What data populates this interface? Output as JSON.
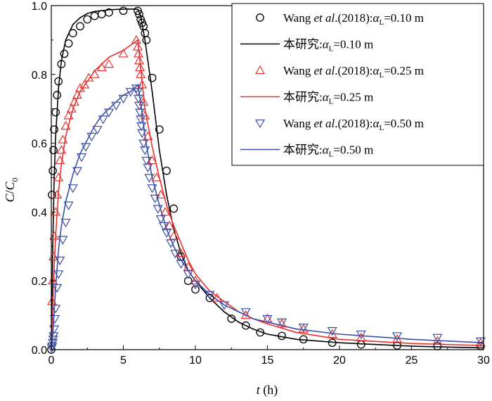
{
  "chart_data": {
    "type": "scatter",
    "xlabel": {
      "var": "t",
      "unit": " (h)"
    },
    "ylabel": {
      "main": "C",
      "slash": "/",
      "sub_main": "C",
      "sub": "0"
    },
    "xlim": [
      0,
      30
    ],
    "ylim": [
      0,
      1.0
    ],
    "xticks": [
      0,
      5,
      10,
      15,
      20,
      25,
      30
    ],
    "yticks": [
      0.0,
      0.2,
      0.4,
      0.6,
      0.8,
      1.0
    ],
    "xtick_labels": [
      "0",
      "5",
      "10",
      "15",
      "20",
      "25",
      "30"
    ],
    "ytick_labels": [
      "0.0",
      "0.2",
      "0.4",
      "0.6",
      "0.8",
      "1.0"
    ],
    "grid": false,
    "legend_position": "top-right",
    "legend": [
      {
        "kind": "marker",
        "marker": "circle",
        "color": "#000000",
        "pre": "Wang ",
        "italic": "et al",
        "mid": ".(2018):",
        "alpha": "α",
        "alpha_sub": "L",
        "value": "=0.10 m"
      },
      {
        "kind": "line",
        "color": "#000000",
        "pre": "本研究:",
        "italic": "",
        "mid": "",
        "alpha": "α",
        "alpha_sub": "L",
        "value": "=0.10 m"
      },
      {
        "kind": "marker",
        "marker": "triangle-up",
        "color": "#e8312f",
        "pre": "Wang ",
        "italic": "et al",
        "mid": ".(2018):",
        "alpha": "α",
        "alpha_sub": "L",
        "value": "=0.25 m"
      },
      {
        "kind": "line",
        "color": "#e8312f",
        "pre": "本研究:",
        "italic": "",
        "mid": "",
        "alpha": "α",
        "alpha_sub": "L",
        "value": "=0.25 m"
      },
      {
        "kind": "marker",
        "marker": "triangle-down",
        "color": "#3b4fa8",
        "pre": "Wang ",
        "italic": "et al",
        "mid": ".(2018):",
        "alpha": "α",
        "alpha_sub": "L",
        "value": "=0.50 m"
      },
      {
        "kind": "line",
        "color": "#3b4fa8",
        "pre": "本研究:",
        "italic": "",
        "mid": "",
        "alpha": "α",
        "alpha_sub": "L",
        "value": "=0.50 m"
      }
    ],
    "series": [
      {
        "name": "Wang et al.(2018):αL=0.10 m",
        "type": "scatter",
        "marker": "circle",
        "color": "#000000",
        "x": [
          0,
          0.05,
          0.1,
          0.15,
          0.2,
          0.3,
          0.4,
          0.5,
          0.7,
          0.9,
          1.2,
          1.5,
          2.0,
          2.5,
          3.0,
          3.5,
          4.0,
          5.0,
          6.0,
          6.1,
          6.2,
          6.3,
          6.4,
          6.5,
          6.6,
          7.0,
          7.5,
          8.0,
          8.5,
          9.0,
          9.5,
          10.0,
          11.0,
          12.5,
          13.5,
          14.5,
          16.0,
          17.5,
          19.5,
          21.5,
          24.0,
          26.8,
          29.8
        ],
        "y": [
          0,
          0.45,
          0.52,
          0.58,
          0.64,
          0.69,
          0.74,
          0.78,
          0.83,
          0.86,
          0.89,
          0.92,
          0.94,
          0.96,
          0.97,
          0.975,
          0.98,
          0.985,
          0.985,
          0.975,
          0.96,
          0.95,
          0.94,
          0.92,
          0.9,
          0.79,
          0.64,
          0.52,
          0.41,
          0.27,
          0.2,
          0.175,
          0.15,
          0.09,
          0.07,
          0.05,
          0.04,
          0.03,
          0.02,
          0.015,
          0.012,
          0.01,
          0.01
        ]
      },
      {
        "name": "本研究:αL=0.10 m",
        "type": "line",
        "color": "#000000",
        "x": [
          0,
          0.1,
          0.2,
          0.3,
          0.5,
          0.7,
          1.0,
          1.5,
          2.0,
          2.5,
          3.0,
          4.0,
          5.0,
          6.0,
          6.2,
          6.5,
          7.0,
          7.5,
          8.0,
          8.5,
          9.0,
          9.5,
          10,
          11,
          12,
          13,
          14,
          15,
          17,
          20,
          25,
          30
        ],
        "y": [
          0,
          0.3,
          0.5,
          0.62,
          0.76,
          0.84,
          0.9,
          0.945,
          0.965,
          0.977,
          0.983,
          0.988,
          0.99,
          0.99,
          0.97,
          0.9,
          0.75,
          0.58,
          0.45,
          0.35,
          0.28,
          0.23,
          0.2,
          0.15,
          0.11,
          0.08,
          0.06,
          0.045,
          0.03,
          0.02,
          0.01,
          0.005
        ]
      },
      {
        "name": "Wang et al.(2018):αL=0.25 m",
        "type": "scatter",
        "marker": "triangle-up",
        "color": "#e8312f",
        "x": [
          0.05,
          0.1,
          0.15,
          0.2,
          0.3,
          0.4,
          0.5,
          0.6,
          0.7,
          0.8,
          1.0,
          1.2,
          1.4,
          1.6,
          1.8,
          2.0,
          2.3,
          2.6,
          3.0,
          3.5,
          4.0,
          5.0,
          5.9,
          6.0,
          6.05,
          6.1,
          6.15,
          6.2,
          6.3,
          6.4,
          6.5,
          6.7,
          7.0,
          7.3,
          7.6,
          7.9,
          8.2,
          8.5,
          9.0,
          9.5,
          10.0,
          11.5,
          13.5,
          15.0,
          16.0,
          17.5,
          19.5,
          21.5,
          24.0,
          26.8,
          29.8
        ],
        "y": [
          0.14,
          0.2,
          0.27,
          0.33,
          0.4,
          0.45,
          0.5,
          0.55,
          0.58,
          0.61,
          0.65,
          0.68,
          0.7,
          0.72,
          0.74,
          0.76,
          0.77,
          0.79,
          0.8,
          0.82,
          0.83,
          0.86,
          0.9,
          0.88,
          0.86,
          0.84,
          0.82,
          0.8,
          0.77,
          0.72,
          0.68,
          0.62,
          0.55,
          0.5,
          0.45,
          0.4,
          0.36,
          0.33,
          0.28,
          0.24,
          0.2,
          0.15,
          0.1,
          0.09,
          0.075,
          0.06,
          0.045,
          0.035,
          0.03,
          0.025,
          0.02
        ]
      },
      {
        "name": "本研究:αL=0.25 m",
        "type": "line",
        "color": "#e8312f",
        "x": [
          0,
          0.1,
          0.2,
          0.3,
          0.5,
          0.7,
          1.0,
          1.5,
          2.0,
          2.5,
          3.0,
          3.5,
          4.0,
          5.0,
          6.0,
          6.2,
          6.5,
          7.0,
          7.5,
          8.0,
          8.5,
          9,
          9.5,
          10,
          11,
          12,
          13,
          14,
          15,
          17,
          20,
          25,
          30
        ],
        "y": [
          0,
          0.12,
          0.24,
          0.33,
          0.46,
          0.54,
          0.62,
          0.7,
          0.75,
          0.78,
          0.81,
          0.83,
          0.85,
          0.87,
          0.9,
          0.82,
          0.7,
          0.59,
          0.5,
          0.42,
          0.36,
          0.31,
          0.26,
          0.22,
          0.17,
          0.14,
          0.11,
          0.09,
          0.075,
          0.05,
          0.03,
          0.018,
          0.012
        ]
      },
      {
        "name": "Wang et al.(2018):αL=0.50 m",
        "type": "scatter",
        "marker": "triangle-down",
        "color": "#3b4fa8",
        "x": [
          0.03,
          0.06,
          0.1,
          0.13,
          0.16,
          0.2,
          0.25,
          0.3,
          0.4,
          0.5,
          0.6,
          0.8,
          1.0,
          1.2,
          1.5,
          1.8,
          2.1,
          2.4,
          2.8,
          3.2,
          3.6,
          4.0,
          4.5,
          5.0,
          5.5,
          5.9,
          6.0,
          6.05,
          6.1,
          6.15,
          6.2,
          6.25,
          6.3,
          6.4,
          6.5,
          6.6,
          6.7,
          6.8,
          7.0,
          7.2,
          7.4,
          7.6,
          7.8,
          8.0,
          8.3,
          8.6,
          9.0,
          9.5,
          10.0,
          11.0,
          12.0,
          13.5,
          15.0,
          16.0,
          17.5,
          19.5,
          21.5,
          24.0,
          26.8,
          29.8
        ],
        "y": [
          0.005,
          0.01,
          0.02,
          0.03,
          0.04,
          0.06,
          0.09,
          0.12,
          0.18,
          0.22,
          0.26,
          0.32,
          0.37,
          0.42,
          0.47,
          0.52,
          0.56,
          0.59,
          0.62,
          0.64,
          0.67,
          0.69,
          0.71,
          0.73,
          0.75,
          0.76,
          0.75,
          0.73,
          0.71,
          0.69,
          0.67,
          0.65,
          0.63,
          0.6,
          0.58,
          0.55,
          0.53,
          0.5,
          0.47,
          0.44,
          0.41,
          0.38,
          0.36,
          0.34,
          0.31,
          0.28,
          0.25,
          0.22,
          0.19,
          0.16,
          0.13,
          0.11,
          0.09,
          0.08,
          0.065,
          0.055,
          0.045,
          0.04,
          0.035,
          0.025
        ]
      },
      {
        "name": "本研究:αL=0.50 m",
        "type": "line",
        "color": "#3b4fa8",
        "x": [
          0,
          0.1,
          0.2,
          0.3,
          0.5,
          0.7,
          1.0,
          1.5,
          2.0,
          2.5,
          3.0,
          3.5,
          4.0,
          4.5,
          5.0,
          5.5,
          6.0,
          6.2,
          6.5,
          7.0,
          7.5,
          8.0,
          8.5,
          9,
          9.5,
          10,
          11,
          12,
          13,
          14,
          15,
          17,
          20,
          25,
          30
        ],
        "y": [
          0,
          0.04,
          0.11,
          0.18,
          0.29,
          0.36,
          0.43,
          0.51,
          0.57,
          0.61,
          0.65,
          0.68,
          0.7,
          0.72,
          0.74,
          0.75,
          0.77,
          0.72,
          0.62,
          0.5,
          0.42,
          0.35,
          0.3,
          0.26,
          0.23,
          0.2,
          0.16,
          0.13,
          0.11,
          0.09,
          0.08,
          0.06,
          0.045,
          0.03,
          0.02
        ]
      }
    ]
  }
}
